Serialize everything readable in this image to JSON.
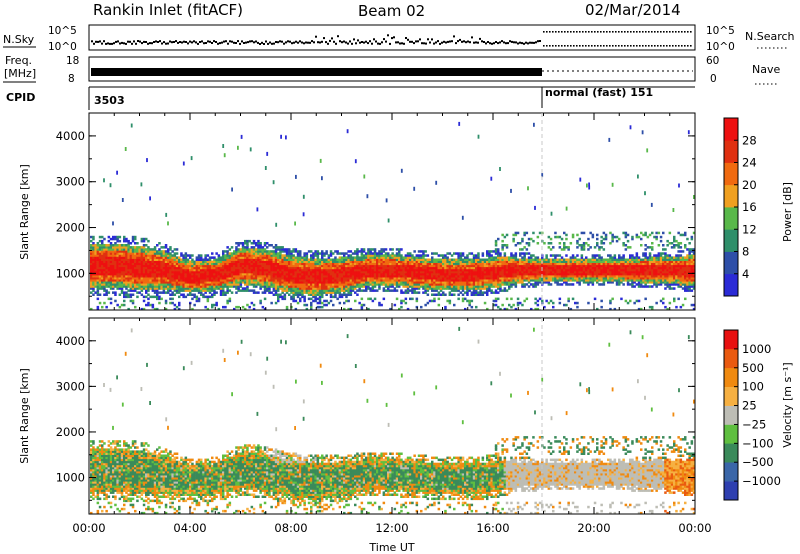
{
  "header": {
    "station": "Rankin Inlet (fitACF)",
    "beam": "Beam 02",
    "date": "02/Mar/2014"
  },
  "summary_panels": {
    "nsky_label": "N.Sky",
    "nsearch_label": "N.Search",
    "nsky_ticks": [
      "10^5",
      "10^0"
    ],
    "nsearch_ticks": [
      "10^5",
      "10^0"
    ],
    "freq_label_1": "Freq.",
    "freq_label_2": "[MHz]",
    "freq_ticks": [
      "18",
      "8"
    ],
    "nave_label": "Nave",
    "nave_ticks": [
      "60",
      "0"
    ],
    "cpid_label": "CPID",
    "cpid_left": "3503",
    "cpid_right": "normal (fast) 151"
  },
  "colors": {
    "power": [
      "#2b2bd6",
      "#2e4fa8",
      "#2f8f6a",
      "#59b84a",
      "#f0a020",
      "#f06a10",
      "#e03010",
      "#ee1010"
    ],
    "velocity": [
      "#2e3fb0",
      "#3a66a8",
      "#3a8a5a",
      "#5fbf40",
      "#bdbdb5",
      "#f6b042",
      "#f08a10",
      "#ea5a10",
      "#e81010"
    ]
  },
  "chart_data": [
    {
      "type": "heatmap",
      "panel": "power",
      "ylabel": "Slant Range [km]",
      "ylim": [
        200,
        4500
      ],
      "yticks": [
        "1000",
        "2000",
        "3000",
        "4000"
      ],
      "x": [
        "00:00",
        "04:00",
        "08:00",
        "12:00",
        "16:00",
        "20:00",
        "00:00"
      ],
      "colorbar_label": "Power [dB]",
      "colorbar_ticks": [
        "4",
        "8",
        "12",
        "16",
        "20",
        "24",
        "28"
      ],
      "colorbar_range": [
        0,
        32
      ],
      "profile": {
        "hours": [
          0,
          1,
          2,
          3,
          4,
          5,
          6,
          7,
          8,
          9,
          10,
          11,
          12,
          13,
          14,
          15,
          16,
          17,
          18,
          19,
          20,
          21,
          22,
          23,
          24
        ],
        "center_km": [
          1150,
          1150,
          1100,
          1050,
          900,
          950,
          1150,
          1100,
          950,
          900,
          950,
          1050,
          1050,
          1000,
          950,
          950,
          1000,
          1050,
          1050,
          1050,
          1050,
          1050,
          1050,
          1050,
          1050
        ],
        "halfwidth_km": [
          350,
          350,
          350,
          300,
          250,
          250,
          300,
          300,
          300,
          300,
          280,
          250,
          250,
          250,
          250,
          250,
          250,
          200,
          180,
          180,
          180,
          180,
          200,
          220,
          250
        ]
      }
    },
    {
      "type": "heatmap",
      "panel": "velocity",
      "ylabel": "Slant Range [km]",
      "ylim": [
        200,
        4500
      ],
      "yticks": [
        "1000",
        "2000",
        "3000",
        "4000"
      ],
      "x": [
        "00:00",
        "04:00",
        "08:00",
        "12:00",
        "16:00",
        "20:00",
        "00:00"
      ],
      "xlabel": "Time UT",
      "colorbar_label": "Velocity [m s⁻¹]",
      "colorbar_ticks": [
        "1000",
        "500",
        "100",
        "25",
        "−25",
        "−100",
        "−500",
        "−1000"
      ],
      "colorbar_range": [
        -1000,
        1000
      ]
    }
  ]
}
